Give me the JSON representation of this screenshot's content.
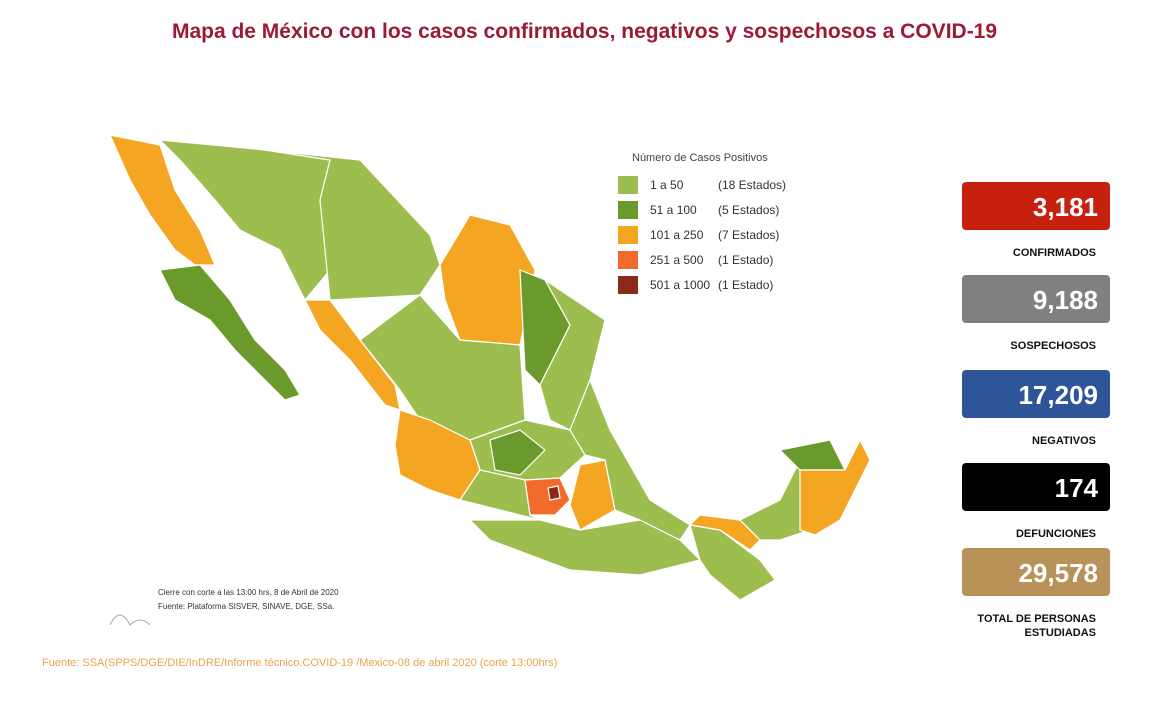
{
  "header": {
    "title": "Mapa de México con los casos confirmados, negativos y sospechosos a COVID-19"
  },
  "legend": {
    "title": "Número de Casos Positivos",
    "items": [
      {
        "range": "1 a 50",
        "count": "(18 Estados)",
        "color": "#9dbd4f"
      },
      {
        "range": "51 a 100",
        "count": "(5 Estados)",
        "color": "#6a9a2c"
      },
      {
        "range": "101 a 250",
        "count": "(7 Estados)",
        "color": "#f4a623"
      },
      {
        "range": "251 a 500",
        "count": "(1 Estado)",
        "color": "#f26b2b"
      },
      {
        "range": "501 a 1000",
        "count": "(1 Estado)",
        "color": "#8b2a1a"
      }
    ]
  },
  "stats": [
    {
      "value": "3,181",
      "label": "CONFIRMADOS",
      "color": "#c8200f"
    },
    {
      "value": "9,188",
      "label": "SOSPECHOSOS",
      "color": "#808080"
    },
    {
      "value": "17,209",
      "label": "NEGATIVOS",
      "color": "#2e5597"
    },
    {
      "value": "174",
      "label": "DEFUNCIONES",
      "color": "#000000"
    },
    {
      "value": "29,578",
      "label": "TOTAL DE PERSONAS ESTUDIADAS",
      "color": "#b9925a"
    }
  ],
  "map_notes": [
    "Cierre con corte a las 13:00 hrs, 8 de Abril de 2020",
    "Fuente: Plataforma SISVER, SINAVE, DGE, SSa."
  ],
  "footer": {
    "source": "Fuente: SSA(SPPS/DGE/DIE/InDRE/Informe técnico.COVID-19 /Mexico-08 de abril 2020 (corte 13:00hrs)"
  }
}
